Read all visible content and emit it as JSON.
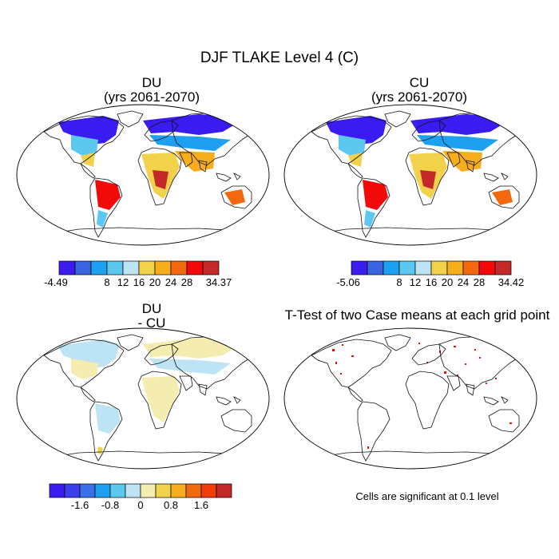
{
  "figure": {
    "title": "DJF TLAKE Level 4 (C)"
  },
  "panels": [
    {
      "id": "du",
      "title_line1": "DU",
      "title_line2": "(yrs 2061-2070)"
    },
    {
      "id": "cu",
      "title_line1": "CU",
      "title_line2": "(yrs 2061-2070)"
    },
    {
      "id": "diff",
      "title_line1": "DU",
      "title_line2": "- CU"
    },
    {
      "id": "ttest",
      "title_line1": "T-Test of two Case means at each grid point",
      "title_line2": ""
    }
  ],
  "colorbars": [
    {
      "id": "du-bar",
      "colors": [
        "#3a1cf0",
        "#3a63e0",
        "#1ea0f0",
        "#5cc8f0",
        "#bce4f5",
        "#f2d24a",
        "#f6ae1c",
        "#f2680e",
        "#f20a0a",
        "#c42828"
      ],
      "labels": [
        "-4.49",
        "8",
        "12",
        "16",
        "20",
        "24",
        "28",
        "34.37"
      ]
    },
    {
      "id": "cu-bar",
      "colors": [
        "#3a1cf0",
        "#3a63e0",
        "#1ea0f0",
        "#5cc8f0",
        "#bce4f5",
        "#f2d24a",
        "#f6ae1c",
        "#f2680e",
        "#f20a0a",
        "#c42828"
      ],
      "labels": [
        "-5.06",
        "8",
        "12",
        "16",
        "20",
        "24",
        "28",
        "34.42"
      ]
    },
    {
      "id": "diff-bar",
      "colors": [
        "#3a1cf0",
        "#3a3ff0",
        "#3a70e8",
        "#1ea0f0",
        "#5cc8f0",
        "#bce4f5",
        "#f5ecb0",
        "#f2d24a",
        "#f6ae1c",
        "#f2680e",
        "#f23c0a",
        "#c42828"
      ],
      "labels": [
        "-1.6",
        "-0.8",
        "0",
        "0.8",
        "1.6"
      ]
    }
  ],
  "note": "Cells are significant at 0.1 level"
}
